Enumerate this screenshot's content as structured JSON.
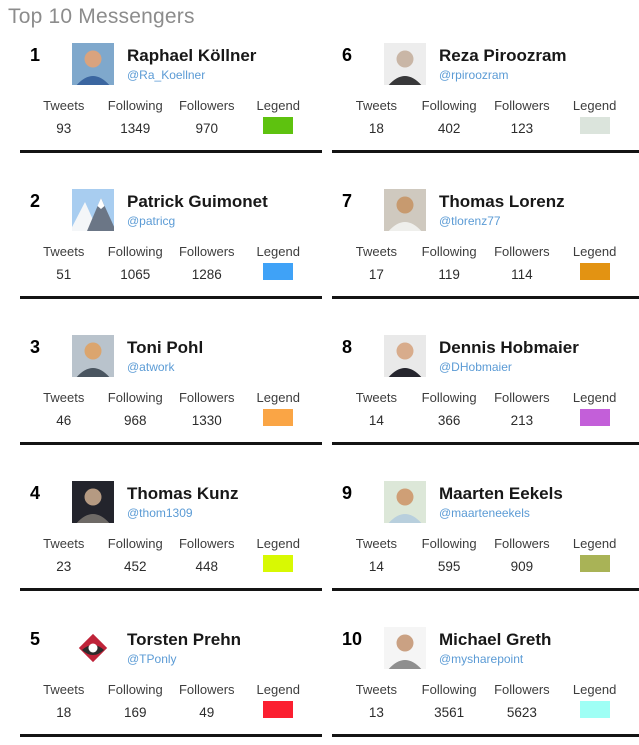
{
  "page_title": "Top 10 Messengers",
  "stat_labels": {
    "tweets": "Tweets",
    "following": "Following",
    "followers": "Followers",
    "legend": "Legend"
  },
  "colors": {
    "title": "#8c8c8c",
    "handle_link": "#5b9bd5",
    "separator": "#141414"
  },
  "cards": [
    {
      "rank": "1",
      "name": "Raphael Köllner",
      "handle": "@Ra_Koellner",
      "tweets": "93",
      "following": "1349",
      "followers": "970",
      "legend_color": "#5ec20f",
      "avatar": {
        "kind": "portrait",
        "bg": "#7fa8cc",
        "main": "#3b66a0",
        "accent": "#d9a37e"
      }
    },
    {
      "rank": "2",
      "name": "Patrick Guimonet",
      "handle": "@patricg",
      "tweets": "51",
      "following": "1065",
      "followers": "1286",
      "legend_color": "#3fa2f7",
      "avatar": {
        "kind": "landscape",
        "bg": "#a8cdf0",
        "main": "#f4f6f8",
        "accent": "#6b7686"
      }
    },
    {
      "rank": "3",
      "name": "Toni Pohl",
      "handle": "@atwork",
      "tweets": "46",
      "following": "968",
      "followers": "1330",
      "legend_color": "#faa545",
      "avatar": {
        "kind": "portrait",
        "bg": "#b9c3cc",
        "main": "#4a5560",
        "accent": "#dba56e"
      }
    },
    {
      "rank": "4",
      "name": "Thomas Kunz",
      "handle": "@thom1309",
      "tweets": "23",
      "following": "452",
      "followers": "448",
      "legend_color": "#d8f903",
      "avatar": {
        "kind": "portrait",
        "bg": "#23242c",
        "main": "#6e6a66",
        "accent": "#b59a82"
      }
    },
    {
      "rank": "5",
      "name": "Torsten Prehn",
      "handle": "@TPonly",
      "tweets": "18",
      "following": "169",
      "followers": "49",
      "legend_color": "#fb1f30",
      "avatar": {
        "kind": "logo",
        "bg": "#ffffff",
        "main": "#bf2339",
        "accent": "#2b2b2b"
      }
    },
    {
      "rank": "6",
      "name": "Reza Piroozram",
      "handle": "@rpiroozram",
      "tweets": "18",
      "following": "402",
      "followers": "123",
      "legend_color": "#dbe4dc",
      "avatar": {
        "kind": "portrait",
        "bg": "#ededed",
        "main": "#38383a",
        "accent": "#c9b6a6"
      }
    },
    {
      "rank": "7",
      "name": "Thomas Lorenz",
      "handle": "@tlorenz77",
      "tweets": "17",
      "following": "119",
      "followers": "114",
      "legend_color": "#e39312",
      "avatar": {
        "kind": "portrait",
        "bg": "#cfc9bf",
        "main": "#efefec",
        "accent": "#c79a6f"
      }
    },
    {
      "rank": "8",
      "name": "Dennis Hobmaier",
      "handle": "@DHobmaier",
      "tweets": "14",
      "following": "366",
      "followers": "213",
      "legend_color": "#c35fd9",
      "avatar": {
        "kind": "portrait",
        "bg": "#e9e9e9",
        "main": "#26262e",
        "accent": "#d8ac8c"
      }
    },
    {
      "rank": "9",
      "name": "Maarten Eekels",
      "handle": "@maarteneekels",
      "tweets": "14",
      "following": "595",
      "followers": "909",
      "legend_color": "#a9b356",
      "avatar": {
        "kind": "portrait",
        "bg": "#dce7d8",
        "main": "#b8cfdd",
        "accent": "#cf9f76"
      }
    },
    {
      "rank": "10",
      "name": "Michael Greth",
      "handle": "@mysharepoint",
      "tweets": "13",
      "following": "3561",
      "followers": "5623",
      "legend_color": "#9ffff5",
      "avatar": {
        "kind": "portrait",
        "bg": "#f5f5f5",
        "main": "#8f8f8f",
        "accent": "#caa183"
      }
    }
  ]
}
